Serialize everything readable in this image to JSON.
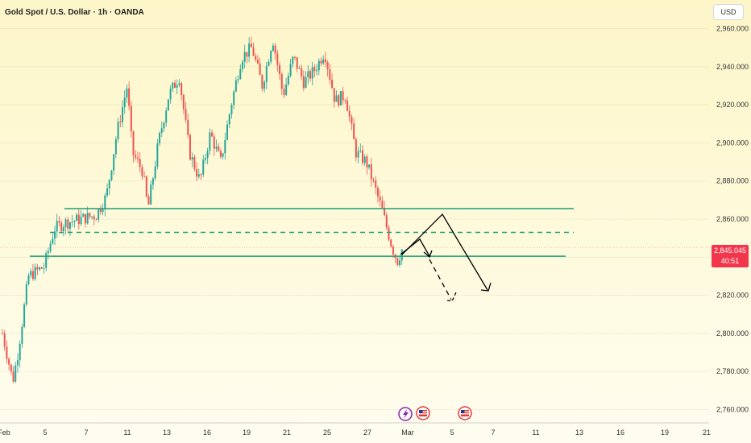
{
  "header": {
    "title": "Gold Spot / U.S. Dollar · 1h · OANDA",
    "currency": "USD"
  },
  "current_price": {
    "value": "2,845.045",
    "countdown": "40:51"
  },
  "colors": {
    "up": "#26a69a",
    "down": "#ef5350",
    "level": "#1b9e77",
    "arrow": "#000000",
    "price_tag": "#f2364c"
  },
  "event_icons": [
    "lightning-event-icon",
    "us-flag-event-icon",
    "us-flag-event-icon"
  ],
  "chart_data": {
    "type": "candlestick",
    "yaxis": {
      "ticks": [
        2760,
        2780,
        2800,
        2820,
        2840,
        2860,
        2880,
        2900,
        2920,
        2940,
        2960
      ],
      "tick_labels": [
        "2,760.000",
        "2,780.000",
        "2,800.000",
        "2,820.000",
        "",
        "2,860.000",
        "2,880.000",
        "2,900.000",
        "2,920.000",
        "2,940.000",
        "2,960.000"
      ],
      "ylim": [
        2755,
        2985
      ]
    },
    "xaxis": {
      "ticks": [
        "Feb",
        "5",
        "7",
        "11",
        "13",
        "16",
        "19",
        "21",
        "25",
        "27",
        "Mar",
        "5",
        "7",
        "11",
        "13",
        "16",
        "19",
        "21"
      ]
    },
    "price_path": [
      [
        0,
        2800
      ],
      [
        2,
        2775
      ],
      [
        3,
        2790
      ],
      [
        5,
        2830
      ],
      [
        8,
        2835
      ],
      [
        10,
        2855
      ],
      [
        12,
        2858
      ],
      [
        15,
        2860
      ],
      [
        18,
        2862
      ],
      [
        20,
        2872
      ],
      [
        22,
        2905
      ],
      [
        24,
        2930
      ],
      [
        25,
        2895
      ],
      [
        27,
        2885
      ],
      [
        28,
        2865
      ],
      [
        30,
        2900
      ],
      [
        32,
        2925
      ],
      [
        34,
        2935
      ],
      [
        36,
        2895
      ],
      [
        38,
        2880
      ],
      [
        40,
        2905
      ],
      [
        42,
        2890
      ],
      [
        44,
        2920
      ],
      [
        46,
        2945
      ],
      [
        48,
        2950
      ],
      [
        50,
        2930
      ],
      [
        52,
        2955
      ],
      [
        54,
        2925
      ],
      [
        56,
        2945
      ],
      [
        58,
        2932
      ],
      [
        60,
        2938
      ],
      [
        62,
        2948
      ],
      [
        64,
        2922
      ],
      [
        66,
        2925
      ],
      [
        68,
        2895
      ],
      [
        70,
        2890
      ],
      [
        71,
        2882
      ],
      [
        73,
        2865
      ],
      [
        75,
        2845
      ],
      [
        76,
        2838
      ],
      [
        77,
        2845
      ]
    ],
    "levels": [
      {
        "name": "resistance",
        "price": 2865.5,
        "style": "solid"
      },
      {
        "name": "mid",
        "price": 2853,
        "style": "dashed"
      },
      {
        "name": "support",
        "price": 2840.5,
        "style": "solid"
      }
    ],
    "last_price": 2845.045
  }
}
